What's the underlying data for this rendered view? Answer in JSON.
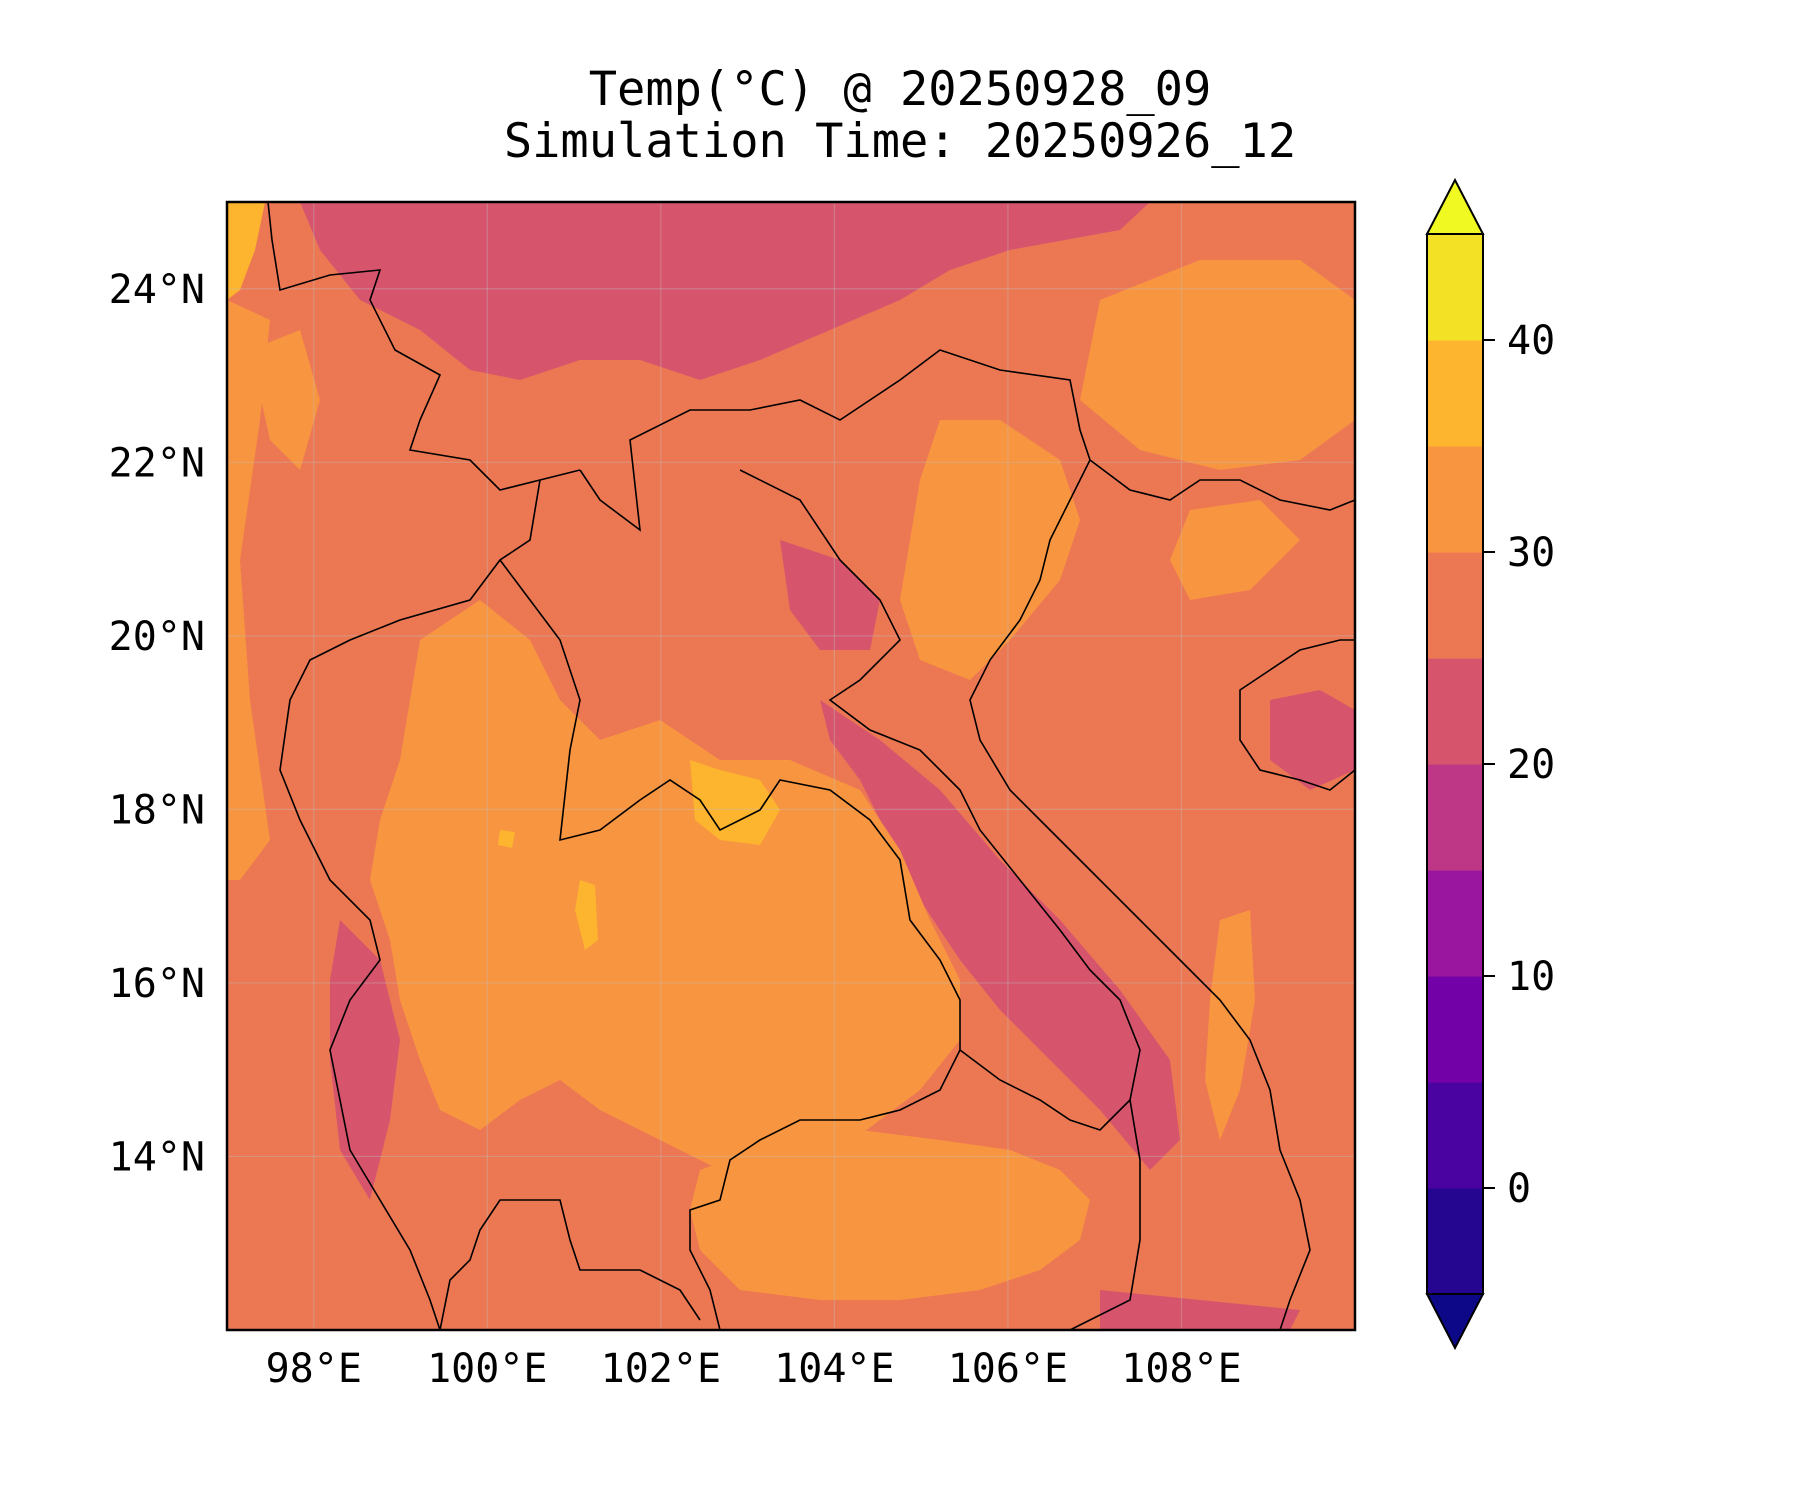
{
  "title": {
    "line1": "Temp(°C) @ 20250928_09",
    "line2": "Simulation Time: 20250926_12"
  },
  "map": {
    "lon_range": [
      97.0,
      110.0
    ],
    "lat_range": [
      12.0,
      25.0
    ],
    "lon_ticks": [
      98,
      100,
      102,
      104,
      106,
      108
    ],
    "lon_tick_labels": [
      "98°E",
      "100°E",
      "102°E",
      "104°E",
      "106°E",
      "108°E"
    ],
    "lat_ticks": [
      14,
      16,
      18,
      20,
      22,
      24
    ],
    "lat_tick_labels": [
      "14°N",
      "16°N",
      "18°N",
      "20°N",
      "22°N",
      "24°N"
    ],
    "grid": true,
    "coastlines": true,
    "borders": true
  },
  "colorbar": {
    "min": -5,
    "max": 45,
    "step": 5,
    "extend": "both",
    "ticks": [
      0,
      10,
      20,
      30,
      40
    ],
    "tick_labels": [
      "0",
      "10",
      "20",
      "30",
      "40"
    ],
    "under_color": "#0d0887",
    "over_color": "#f0f921",
    "colors": [
      "#240691",
      "#4a02a0",
      "#7201a8",
      "#9a169f",
      "#bd3786",
      "#d6556d",
      "#ec7853",
      "#f89540",
      "#fdb42f",
      "#f3e125"
    ]
  },
  "field_colors": {
    "band_20_25": "#d6556d",
    "band_15_20": "#bd3786",
    "band_25_30": "#ec7853",
    "band_30_35": "#f89540",
    "band_35_40": "#fdb42f"
  }
}
